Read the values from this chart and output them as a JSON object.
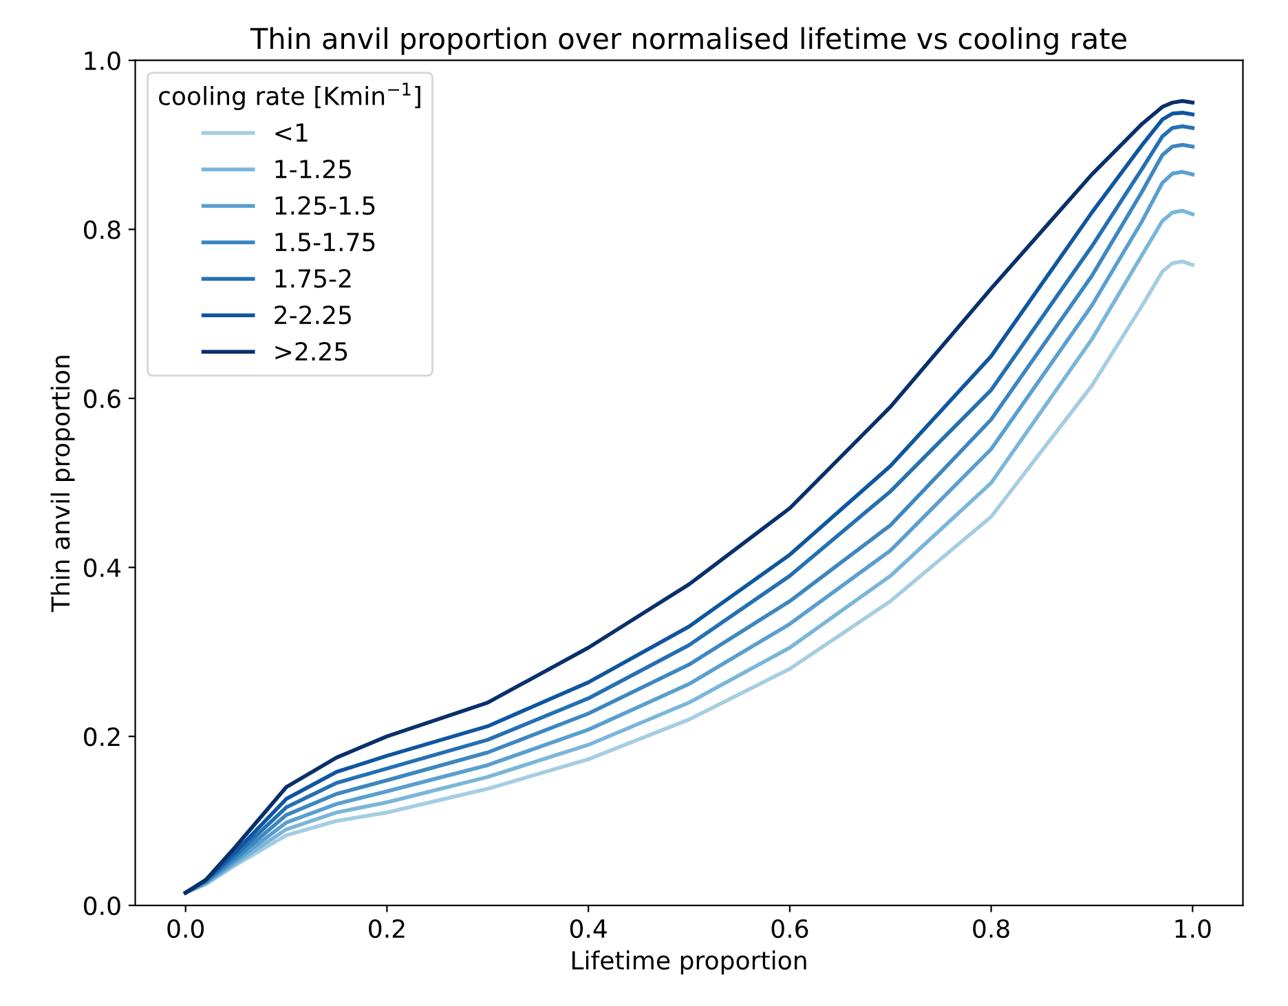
{
  "chart_data": {
    "type": "line",
    "title": "Thin anvil proportion over normalised lifetime vs cooling rate",
    "xlabel": "Lifetime proportion",
    "ylabel": "Thin anvil proportion",
    "legend_title": "cooling rate [Kmin$^{−1}$]",
    "x": [
      0,
      0.02,
      0.05,
      0.1,
      0.15,
      0.2,
      0.3,
      0.4,
      0.5,
      0.6,
      0.7,
      0.8,
      0.9,
      0.95,
      0.97,
      0.98,
      0.99,
      1.0
    ],
    "series": [
      {
        "name": "<1",
        "color": "#a6cde2",
        "values": [
          0.015,
          0.025,
          0.048,
          0.083,
          0.1,
          0.11,
          0.138,
          0.173,
          0.22,
          0.28,
          0.36,
          0.46,
          0.615,
          0.71,
          0.75,
          0.76,
          0.762,
          0.758
        ]
      },
      {
        "name": "1-1.25",
        "color": "#7ab6d9",
        "values": [
          0.015,
          0.026,
          0.05,
          0.09,
          0.11,
          0.122,
          0.152,
          0.19,
          0.24,
          0.305,
          0.39,
          0.5,
          0.67,
          0.77,
          0.81,
          0.82,
          0.822,
          0.818
        ]
      },
      {
        "name": "1.25-1.5",
        "color": "#5a9fcf",
        "values": [
          0.015,
          0.027,
          0.053,
          0.098,
          0.12,
          0.135,
          0.166,
          0.208,
          0.262,
          0.333,
          0.42,
          0.54,
          0.71,
          0.81,
          0.855,
          0.866,
          0.868,
          0.865
        ]
      },
      {
        "name": "1.5-1.75",
        "color": "#3d87c0",
        "values": [
          0.015,
          0.028,
          0.056,
          0.107,
          0.132,
          0.148,
          0.181,
          0.227,
          0.285,
          0.36,
          0.45,
          0.575,
          0.745,
          0.845,
          0.888,
          0.898,
          0.9,
          0.898
        ]
      },
      {
        "name": "1.75-2",
        "color": "#2570b3",
        "values": [
          0.015,
          0.029,
          0.06,
          0.116,
          0.145,
          0.162,
          0.196,
          0.245,
          0.308,
          0.39,
          0.49,
          0.61,
          0.78,
          0.872,
          0.91,
          0.92,
          0.922,
          0.92
        ]
      },
      {
        "name": "2-2.25",
        "color": "#0f56a0",
        "values": [
          0.015,
          0.03,
          0.064,
          0.126,
          0.158,
          0.177,
          0.212,
          0.264,
          0.33,
          0.415,
          0.52,
          0.65,
          0.82,
          0.9,
          0.93,
          0.937,
          0.938,
          0.936
        ]
      },
      {
        "name": ">2.25",
        "color": "#08306b",
        "values": [
          0.015,
          0.03,
          0.07,
          0.14,
          0.175,
          0.2,
          0.24,
          0.305,
          0.38,
          0.47,
          0.59,
          0.73,
          0.865,
          0.925,
          0.945,
          0.95,
          0.952,
          0.95
        ]
      }
    ],
    "xlim": [
      -0.05,
      1.05
    ],
    "xticks": [
      {
        "value": 0,
        "label": "0.0"
      },
      0.2,
      0.4,
      0.6,
      0.8,
      {
        "value": 1,
        "label": "1.0"
      }
    ],
    "ylim": [
      0,
      1
    ],
    "yticks": [
      {
        "value": 0,
        "label": "0.0"
      },
      0.2,
      0.4,
      0.6,
      0.8,
      {
        "value": 1,
        "label": "1.0"
      }
    ],
    "legend": "top left",
    "grid": false,
    "marker": "none",
    "line_style": "solid"
  }
}
